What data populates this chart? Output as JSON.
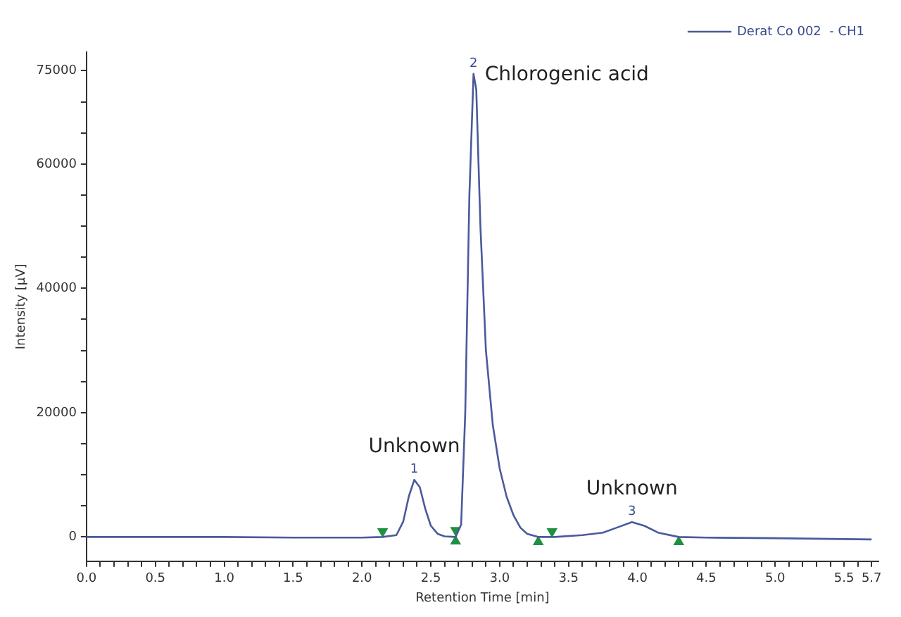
{
  "chart_data": {
    "type": "line",
    "xlabel": "Retention Time [min]",
    "ylabel": "Intensity [µV]",
    "legend": "top right",
    "grid": false,
    "marker": "none",
    "line_style": "solid",
    "xlim": [
      0,
      5.75
    ],
    "ylim": [
      -3900,
      78000
    ],
    "xticks": [
      {
        "value": 0,
        "label": "0.0"
      },
      {
        "value": 0.1,
        "label": null
      },
      {
        "value": 0.2,
        "label": null
      },
      {
        "value": 0.3,
        "label": null
      },
      {
        "value": 0.4,
        "label": null
      },
      {
        "value": 0.5,
        "label": "0.5"
      },
      {
        "value": 0.6,
        "label": null
      },
      {
        "value": 0.7,
        "label": null
      },
      {
        "value": 0.8,
        "label": null
      },
      {
        "value": 0.9,
        "label": null
      },
      {
        "value": 1,
        "label": "1.0"
      },
      {
        "value": 1.1,
        "label": null
      },
      {
        "value": 1.2,
        "label": null
      },
      {
        "value": 1.3,
        "label": null
      },
      {
        "value": 1.4,
        "label": null
      },
      {
        "value": 1.5,
        "label": "1.5"
      },
      {
        "value": 1.6,
        "label": null
      },
      {
        "value": 1.7,
        "label": null
      },
      {
        "value": 1.8,
        "label": null
      },
      {
        "value": 1.9,
        "label": null
      },
      {
        "value": 2,
        "label": "2.0"
      },
      {
        "value": 2.1,
        "label": null
      },
      {
        "value": 2.2,
        "label": null
      },
      {
        "value": 2.3,
        "label": null
      },
      {
        "value": 2.4,
        "label": null
      },
      {
        "value": 2.5,
        "label": "2.5"
      },
      {
        "value": 2.6,
        "label": null
      },
      {
        "value": 2.7,
        "label": null
      },
      {
        "value": 2.8,
        "label": null
      },
      {
        "value": 2.9,
        "label": null
      },
      {
        "value": 3,
        "label": "3.0"
      },
      {
        "value": 3.1,
        "label": null
      },
      {
        "value": 3.2,
        "label": null
      },
      {
        "value": 3.3,
        "label": null
      },
      {
        "value": 3.4,
        "label": null
      },
      {
        "value": 3.5,
        "label": "3.5"
      },
      {
        "value": 3.6,
        "label": null
      },
      {
        "value": 3.7,
        "label": null
      },
      {
        "value": 3.8,
        "label": null
      },
      {
        "value": 3.9,
        "label": null
      },
      {
        "value": 4,
        "label": "4.0"
      },
      {
        "value": 4.1,
        "label": null
      },
      {
        "value": 4.2,
        "label": null
      },
      {
        "value": 4.3,
        "label": null
      },
      {
        "value": 4.4,
        "label": null
      },
      {
        "value": 4.5,
        "label": "4.5"
      },
      {
        "value": 4.6,
        "label": null
      },
      {
        "value": 4.7,
        "label": null
      },
      {
        "value": 4.8,
        "label": null
      },
      {
        "value": 4.9,
        "label": null
      },
      {
        "value": 5,
        "label": "5.0"
      },
      {
        "value": 5.1,
        "label": null
      },
      {
        "value": 5.2,
        "label": null
      },
      {
        "value": 5.3,
        "label": null
      },
      {
        "value": 5.4,
        "label": null
      },
      {
        "value": 5.5,
        "label": "5.5"
      },
      {
        "value": 5.6,
        "label": null
      },
      {
        "value": 5.7,
        "label": "5.7"
      }
    ],
    "yticks": [
      0,
      {
        "value": 5000,
        "label": null
      },
      {
        "value": 10000,
        "label": null
      },
      {
        "value": 15000,
        "label": null
      },
      20000,
      {
        "value": 25000,
        "label": null
      },
      {
        "value": 30000,
        "label": null
      },
      {
        "value": 35000,
        "label": null
      },
      40000,
      {
        "value": 45000,
        "label": null
      },
      {
        "value": 50000,
        "label": null
      },
      {
        "value": 55000,
        "label": null
      },
      60000,
      {
        "value": 65000,
        "label": null
      },
      {
        "value": 70000,
        "label": null
      },
      75000
    ],
    "annotations": [
      {
        "text": "1",
        "x": 2.38,
        "y": 9200
      },
      {
        "text": "Unknown",
        "x": 2.38,
        "y": 9200
      },
      {
        "text": "2",
        "x": 2.81,
        "y": 74500
      },
      {
        "text": "Chlorogenic acid",
        "x": 2.81,
        "y": 74500
      },
      {
        "text": "3",
        "x": 3.96,
        "y": 2400
      },
      {
        "text": "Unknown",
        "x": 3.96,
        "y": 2400
      }
    ],
    "series": [
      {
        "name": "Derat Co 002  - CH1",
        "type": "line",
        "color": "#4a5a9c",
        "x": [
          0,
          0.5,
          1,
          1.5,
          2,
          2.15,
          2.25,
          2.3,
          2.34,
          2.38,
          2.42,
          2.46,
          2.5,
          2.55,
          2.6,
          2.68,
          2.72,
          2.75,
          2.78,
          2.81,
          2.83,
          2.86,
          2.9,
          2.95,
          3,
          3.05,
          3.1,
          3.15,
          3.2,
          3.28,
          3.4,
          3.6,
          3.75,
          3.85,
          3.96,
          4.05,
          4.15,
          4.3,
          4.5,
          5,
          5.7
        ],
        "values": [
          0,
          0,
          0,
          -100,
          -100,
          0,
          300,
          2500,
          6500,
          9200,
          8000,
          4500,
          1800,
          500,
          100,
          0,
          2000,
          20000,
          55000,
          74500,
          72000,
          50000,
          30000,
          18000,
          11000,
          6500,
          3500,
          1500,
          500,
          0,
          0,
          300,
          700,
          1500,
          2400,
          1800,
          700,
          0,
          -100,
          -200,
          -400
        ]
      },
      {
        "type": "scatter",
        "marker": "triangle",
        "color": "#1e9040",
        "x": [
          2.15,
          2.68,
          3.38
        ],
        "values": [
          900,
          1100,
          900
        ]
      },
      {
        "type": "scatter",
        "marker": "triangle",
        "color": "#1e9040",
        "x": [
          2.68,
          3.28,
          4.3
        ],
        "values": [
          -700,
          -800,
          -800
        ]
      }
    ]
  }
}
